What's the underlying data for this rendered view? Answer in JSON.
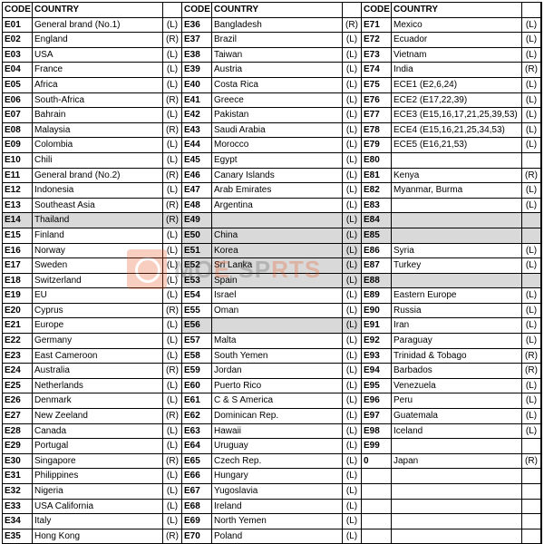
{
  "headers": {
    "code": "CODE",
    "country": "COUNTRY"
  },
  "watermark": {
    "line1": "MO",
    "line2": "E",
    "sub": "SP",
    "suffix": "RTS"
  },
  "columns": [
    [
      {
        "code": "E01",
        "country": "General brand (No.1)",
        "flag": "(L)"
      },
      {
        "code": "E02",
        "country": "England",
        "flag": "(R)"
      },
      {
        "code": "E03",
        "country": "USA",
        "flag": "(L)"
      },
      {
        "code": "E04",
        "country": "France",
        "flag": "(L)"
      },
      {
        "code": "E05",
        "country": "Africa",
        "flag": "(L)"
      },
      {
        "code": "E06",
        "country": "South-Africa",
        "flag": "(R)"
      },
      {
        "code": "E07",
        "country": "Bahrain",
        "flag": "(L)"
      },
      {
        "code": "E08",
        "country": "Malaysia",
        "flag": "(R)"
      },
      {
        "code": "E09",
        "country": "Colombia",
        "flag": "(L)"
      },
      {
        "code": "E10",
        "country": "Chili",
        "flag": "(L)"
      },
      {
        "code": "E11",
        "country": "General brand (No.2)",
        "flag": "(R)"
      },
      {
        "code": "E12",
        "country": "Indonesia",
        "flag": "(L)"
      },
      {
        "code": "E13",
        "country": "Southeast Asia",
        "flag": "(R)"
      },
      {
        "code": "E14",
        "country": "Thailand",
        "flag": "(R)",
        "shaded": true
      },
      {
        "code": "E15",
        "country": "Finland",
        "flag": "(L)"
      },
      {
        "code": "E16",
        "country": "Norway",
        "flag": "(L)"
      },
      {
        "code": "E17",
        "country": "Sweden",
        "flag": "(L)"
      },
      {
        "code": "E18",
        "country": "Switzerland",
        "flag": "(L)"
      },
      {
        "code": "E19",
        "country": "EU",
        "flag": "(L)"
      },
      {
        "code": "E20",
        "country": "Cyprus",
        "flag": "(R)"
      },
      {
        "code": "E21",
        "country": "Europe",
        "flag": "(L)"
      },
      {
        "code": "E22",
        "country": "Germany",
        "flag": "(L)"
      },
      {
        "code": "E23",
        "country": "East Cameroon",
        "flag": "(L)"
      },
      {
        "code": "E24",
        "country": "Australia",
        "flag": "(R)"
      },
      {
        "code": "E25",
        "country": "Netherlands",
        "flag": "(L)"
      },
      {
        "code": "E26",
        "country": "Denmark",
        "flag": "(L)"
      },
      {
        "code": "E27",
        "country": "New Zeeland",
        "flag": "(R)"
      },
      {
        "code": "E28",
        "country": "Canada",
        "flag": "(L)"
      },
      {
        "code": "E29",
        "country": "Portugal",
        "flag": "(L)"
      },
      {
        "code": "E30",
        "country": "Singapore",
        "flag": "(R)"
      },
      {
        "code": "E31",
        "country": "Philippines",
        "flag": "(L)"
      },
      {
        "code": "E32",
        "country": "Nigeria",
        "flag": "(L)"
      },
      {
        "code": "E33",
        "country": "USA California",
        "flag": "(L)"
      },
      {
        "code": "E34",
        "country": "Italy",
        "flag": "(L)"
      },
      {
        "code": "E35",
        "country": "Hong Kong",
        "flag": "(R)"
      }
    ],
    [
      {
        "code": "E36",
        "country": "Bangladesh",
        "flag": "(R)"
      },
      {
        "code": "E37",
        "country": "Brazil",
        "flag": "(L)"
      },
      {
        "code": "E38",
        "country": "Taiwan",
        "flag": "(L)"
      },
      {
        "code": "E39",
        "country": "Austria",
        "flag": "(L)"
      },
      {
        "code": "E40",
        "country": "Costa Rica",
        "flag": "(L)"
      },
      {
        "code": "E41",
        "country": "Greece",
        "flag": "(L)"
      },
      {
        "code": "E42",
        "country": "Pakistan",
        "flag": "(L)"
      },
      {
        "code": "E43",
        "country": "Saudi Arabia",
        "flag": "(L)"
      },
      {
        "code": "E44",
        "country": "Morocco",
        "flag": "(L)"
      },
      {
        "code": "E45",
        "country": "Egypt",
        "flag": "(L)"
      },
      {
        "code": "E46",
        "country": "Canary Islands",
        "flag": "(L)"
      },
      {
        "code": "E47",
        "country": "Arab Emirates",
        "flag": "(L)"
      },
      {
        "code": "E48",
        "country": "Argentina",
        "flag": "(L)"
      },
      {
        "code": "E49",
        "country": "",
        "flag": "(L)",
        "shaded": true
      },
      {
        "code": "E50",
        "country": "China",
        "flag": "(L)",
        "shaded": true
      },
      {
        "code": "E51",
        "country": "Korea",
        "flag": "(L)",
        "shaded": true
      },
      {
        "code": "E52",
        "country": "Sri Lanka",
        "flag": "(L)",
        "shaded": true
      },
      {
        "code": "E53",
        "country": "Spain",
        "flag": "(L)",
        "shaded": true
      },
      {
        "code": "E54",
        "country": "Israel",
        "flag": "(L)"
      },
      {
        "code": "E55",
        "country": "Oman",
        "flag": "(L)"
      },
      {
        "code": "E56",
        "country": "",
        "flag": "(L)",
        "shaded": true
      },
      {
        "code": "E57",
        "country": "Malta",
        "flag": "(L)"
      },
      {
        "code": "E58",
        "country": "South Yemen",
        "flag": "(L)"
      },
      {
        "code": "E59",
        "country": "Jordan",
        "flag": "(L)"
      },
      {
        "code": "E60",
        "country": "Puerto Rico",
        "flag": "(L)"
      },
      {
        "code": "E61",
        "country": "C & S America",
        "flag": "(L)"
      },
      {
        "code": "E62",
        "country": "Dominican Rep.",
        "flag": "(L)"
      },
      {
        "code": "E63",
        "country": "Hawaii",
        "flag": "(L)"
      },
      {
        "code": "E64",
        "country": "Uruguay",
        "flag": "(L)"
      },
      {
        "code": "E65",
        "country": "Czech Rep.",
        "flag": "(L)"
      },
      {
        "code": "E66",
        "country": "Hungary",
        "flag": "(L)"
      },
      {
        "code": "E67",
        "country": "Yugoslavia",
        "flag": "(L)"
      },
      {
        "code": "E68",
        "country": "Ireland",
        "flag": "(L)"
      },
      {
        "code": "E69",
        "country": "North Yemen",
        "flag": "(L)"
      },
      {
        "code": "E70",
        "country": "Poland",
        "flag": "(L)"
      }
    ],
    [
      {
        "code": "E71",
        "country": "Mexico",
        "flag": "(L)"
      },
      {
        "code": "E72",
        "country": "Ecuador",
        "flag": "(L)"
      },
      {
        "code": "E73",
        "country": "Vietnam",
        "flag": "(L)"
      },
      {
        "code": "E74",
        "country": "India",
        "flag": "(R)"
      },
      {
        "code": "E75",
        "country": "ECE1 (E2,6,24)",
        "flag": "(L)"
      },
      {
        "code": "E76",
        "country": "ECE2 (E17,22,39)",
        "flag": "(L)"
      },
      {
        "code": "E77",
        "country": "ECE3 (E15,16,17,21,25,39,53)",
        "flag": "(L)"
      },
      {
        "code": "E78",
        "country": "ECE4 (E15,16,21,25,34,53)",
        "flag": "(L)"
      },
      {
        "code": "E79",
        "country": "ECE5 (E16,21,53)",
        "flag": "(L)"
      },
      {
        "code": "E80",
        "country": "",
        "flag": ""
      },
      {
        "code": "E81",
        "country": "Kenya",
        "flag": "(R)"
      },
      {
        "code": "E82",
        "country": "Myanmar, Burma",
        "flag": "(L)"
      },
      {
        "code": "E83",
        "country": "",
        "flag": "(L)"
      },
      {
        "code": "E84",
        "country": "",
        "flag": "",
        "shaded": true
      },
      {
        "code": "E85",
        "country": "",
        "flag": "",
        "shaded": true
      },
      {
        "code": "E86",
        "country": "Syria",
        "flag": "(L)"
      },
      {
        "code": "E87",
        "country": "Turkey",
        "flag": "(L)"
      },
      {
        "code": "E88",
        "country": "",
        "flag": "",
        "shaded": true
      },
      {
        "code": "E89",
        "country": "Eastern Europe",
        "flag": "(L)"
      },
      {
        "code": "E90",
        "country": "Russia",
        "flag": "(L)"
      },
      {
        "code": "E91",
        "country": "Iran",
        "flag": "(L)"
      },
      {
        "code": "E92",
        "country": "Paraguay",
        "flag": "(L)"
      },
      {
        "code": "E93",
        "country": "Trinidad & Tobago",
        "flag": "(R)"
      },
      {
        "code": "E94",
        "country": "Barbados",
        "flag": "(R)"
      },
      {
        "code": "E95",
        "country": "Venezuela",
        "flag": "(L)"
      },
      {
        "code": "E96",
        "country": "Peru",
        "flag": "(L)"
      },
      {
        "code": "E97",
        "country": "Guatemala",
        "flag": "(L)"
      },
      {
        "code": "E98",
        "country": "Iceland",
        "flag": "(L)"
      },
      {
        "code": "E99",
        "country": "",
        "flag": ""
      },
      {
        "code": "0",
        "country": "Japan",
        "flag": "(R)"
      },
      {
        "code": "",
        "country": "",
        "flag": ""
      },
      {
        "code": "",
        "country": "",
        "flag": ""
      },
      {
        "code": "",
        "country": "",
        "flag": ""
      },
      {
        "code": "",
        "country": "",
        "flag": ""
      },
      {
        "code": "",
        "country": "",
        "flag": ""
      }
    ]
  ]
}
